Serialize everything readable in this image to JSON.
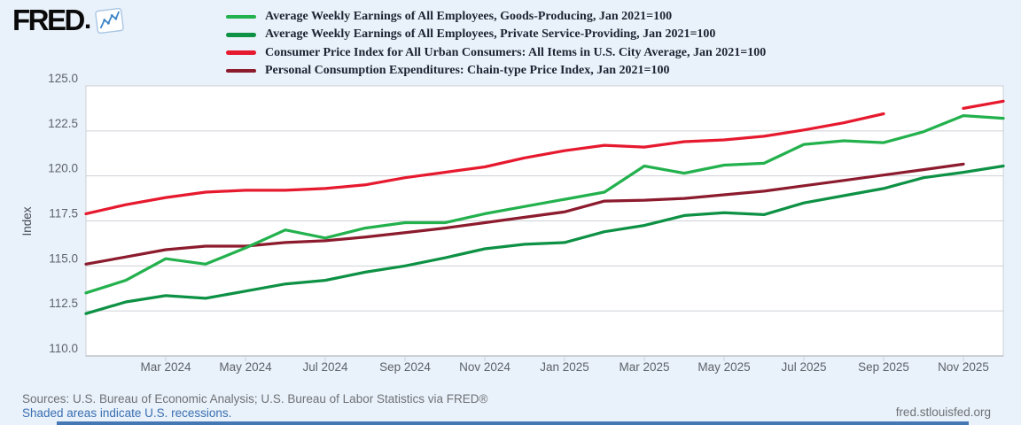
{
  "brand": {
    "logo_text": "FRED",
    "logo_mark": ".",
    "icon": "sparkline-chart-icon"
  },
  "legend": {
    "items": [
      {
        "id": "goods",
        "label": "Average Weekly Earnings of All Employees, Goods-Producing, Jan 2021=100",
        "color": "#23b14d"
      },
      {
        "id": "services",
        "label": "Average Weekly Earnings of All Employees, Private Service-Providing, Jan 2021=100",
        "color": "#0d9144"
      },
      {
        "id": "cpi",
        "label": "Consumer Price Index for All Urban Consumers: All Items in U.S. City Average, Jan 2021=100",
        "color": "#e6192e"
      },
      {
        "id": "pce",
        "label": "Personal Consumption Expenditures: Chain-type Price Index, Jan 2021=100",
        "color": "#8c1b2e"
      }
    ]
  },
  "chart_data": {
    "type": "line",
    "title": "",
    "xlabel": "",
    "ylabel": "Index",
    "ylim": [
      110,
      125
    ],
    "yticks": [
      110,
      112.5,
      115,
      117.5,
      120,
      122.5,
      125
    ],
    "grid": "horizontal",
    "legend_position": "top",
    "colors": {
      "grid": "#cdd1d7",
      "axis": "#b3b8bf",
      "plot_bg": "#ffffff",
      "page_bg": "#e9f1fa"
    },
    "x_categories": [
      "Jan 2024",
      "Feb 2024",
      "Mar 2024",
      "Apr 2024",
      "May 2024",
      "Jun 2024",
      "Jul 2024",
      "Aug 2024",
      "Sep 2024",
      "Oct 2024",
      "Nov 2024",
      "Dec 2024",
      "Jan 2025",
      "Feb 2025",
      "Mar 2025",
      "Apr 2025",
      "May 2025",
      "Jun 2025",
      "Jul 2025",
      "Aug 2025",
      "Sep 2025",
      "Oct 2025",
      "Nov 2025",
      "Dec 2025"
    ],
    "x_ticks": [
      {
        "index": 2,
        "label": "Mar 2024"
      },
      {
        "index": 4,
        "label": "May 2024"
      },
      {
        "index": 6,
        "label": "Jul 2024"
      },
      {
        "index": 8,
        "label": "Sep 2024"
      },
      {
        "index": 10,
        "label": "Nov 2024"
      },
      {
        "index": 12,
        "label": "Jan 2025"
      },
      {
        "index": 14,
        "label": "Mar 2025"
      },
      {
        "index": 16,
        "label": "May 2025"
      },
      {
        "index": 18,
        "label": "Jul 2025"
      },
      {
        "index": 20,
        "label": "Sep 2025"
      },
      {
        "index": 22,
        "label": "Nov 2025"
      }
    ],
    "draw_order": [
      1,
      3,
      0,
      2
    ],
    "series": [
      {
        "id": "goods",
        "name": "Average Weekly Earnings of All Employees, Goods-Producing, Jan 2021=100",
        "color": "#23b14d",
        "values": [
          113.5,
          114.2,
          115.4,
          115.1,
          116.0,
          117.0,
          116.55,
          117.1,
          117.4,
          117.4,
          117.9,
          118.3,
          118.7,
          119.1,
          120.55,
          120.15,
          120.6,
          120.7,
          121.75,
          121.95,
          121.85,
          122.45,
          123.35,
          123.2
        ]
      },
      {
        "id": "services",
        "name": "Average Weekly Earnings of All Employees, Private Service-Providing, Jan 2021=100",
        "color": "#0d9144",
        "values": [
          112.35,
          113.0,
          113.35,
          113.2,
          113.6,
          114.0,
          114.2,
          114.65,
          115.0,
          115.45,
          115.95,
          116.2,
          116.3,
          116.9,
          117.25,
          117.8,
          117.95,
          117.85,
          118.5,
          118.9,
          119.3,
          119.9,
          120.2,
          120.55
        ]
      },
      {
        "id": "cpi",
        "name": "Consumer Price Index for All Urban Consumers: All Items in U.S. City Average, Jan 2021=100",
        "color": "#e6192e",
        "values": [
          117.9,
          118.4,
          118.8,
          119.1,
          119.2,
          119.2,
          119.3,
          119.5,
          119.9,
          120.2,
          120.5,
          121.0,
          121.4,
          121.7,
          121.6,
          121.9,
          122.0,
          122.2,
          122.55,
          122.95,
          123.45,
          null,
          123.75,
          124.15
        ]
      },
      {
        "id": "pce",
        "name": "Personal Consumption Expenditures: Chain-type Price Index, Jan 2021=100",
        "color": "#8c1b2e",
        "values": [
          115.1,
          115.5,
          115.9,
          116.1,
          116.1,
          116.3,
          116.4,
          116.6,
          116.85,
          117.1,
          117.4,
          117.7,
          118.0,
          118.6,
          118.65,
          118.75,
          118.95,
          119.15,
          119.45,
          119.75,
          120.05,
          120.35,
          120.65,
          null
        ]
      }
    ]
  },
  "footer": {
    "sources": "Sources: U.S. Bureau of Economic Analysis; U.S. Bureau of Labor Statistics via FRED®",
    "recessions_note": "Shaded areas indicate U.S. recessions.",
    "site_link": "fred.stlouisfed.org"
  }
}
